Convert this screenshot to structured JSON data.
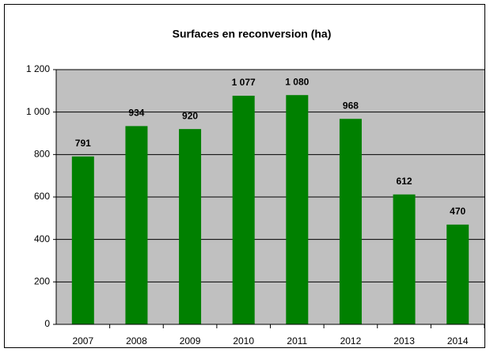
{
  "chart_data": {
    "type": "bar",
    "title": "Surfaces en reconversion (ha)",
    "categories": [
      "2007",
      "2008",
      "2009",
      "2010",
      "2011",
      "2012",
      "2013",
      "2014"
    ],
    "values": [
      791,
      934,
      920,
      1077,
      1080,
      968,
      612,
      470
    ],
    "value_labels": [
      "791",
      "934",
      "920",
      "1 077",
      "1 080",
      "968",
      "612",
      "470"
    ],
    "color": "#008000",
    "ylim": [
      0,
      1200
    ],
    "yticks": [
      0,
      200,
      400,
      600,
      800,
      {
        "value": 1000,
        "label": "1 000"
      },
      {
        "value": 1200,
        "label": "1 200"
      }
    ],
    "grid": true
  }
}
